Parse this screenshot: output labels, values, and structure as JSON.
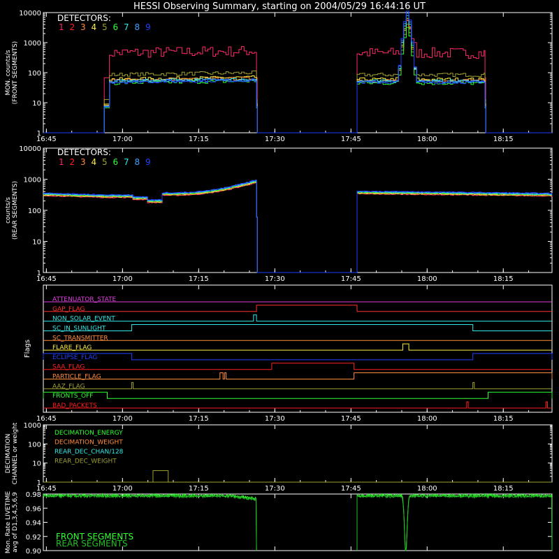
{
  "title": "HESSI Observing Summary, starting on 2004/05/29 16:44:16 UT",
  "colors": {
    "background": "#000000",
    "axis": "#ffffff",
    "det1": "#ff2a68",
    "det2": "#ff2020",
    "det3": "#ff8c3a",
    "det4": "#ffee40",
    "det5": "#a0a030",
    "det6": "#30ff30",
    "det7": "#30e8e8",
    "det8": "#40a0ff",
    "det9": "#2040ff",
    "front": "#30ff30",
    "rear": "#20c020"
  },
  "chart_data": [
    {
      "id": "front",
      "type": "line",
      "ylabel": "MON. counts/s\n(FRONT SEGMENTS)",
      "yscale": "log",
      "ylim": [
        1,
        10000
      ],
      "yticks": [
        "1",
        "10",
        "100",
        "1000",
        "10000"
      ],
      "xlim": [
        16.74,
        18.41
      ],
      "xticks": [
        "16:45",
        "17:00",
        "17:15",
        "17:30",
        "17:45",
        "18:00",
        "18:15"
      ],
      "legend_title": "DETECTORS:",
      "legend_labels": [
        "1",
        "2",
        "3",
        "4",
        "5",
        "6",
        "7",
        "8",
        "9"
      ],
      "segments": [
        [
          16.94,
          17.44
        ],
        [
          17.77,
          18.19
        ]
      ],
      "series": [
        {
          "color_key": "det1",
          "level": 450,
          "noise": 0.18,
          "peak": 3000
        },
        {
          "color_key": "det5",
          "level": 85,
          "noise": 0.06,
          "peak": 2500
        },
        {
          "color_key": "det4",
          "level": 60,
          "noise": 0.05,
          "peak": 4000
        },
        {
          "color_key": "det3",
          "level": 55,
          "noise": 0.05,
          "peak": 3500
        },
        {
          "color_key": "det6",
          "level": 45,
          "noise": 0.06,
          "peak": 2000
        },
        {
          "color_key": "det7",
          "level": 52,
          "noise": 0.05,
          "peak": 5000
        },
        {
          "color_key": "det8",
          "level": 50,
          "noise": 0.05,
          "peak": 6000
        },
        {
          "color_key": "det9",
          "level": 48,
          "noise": 0.05,
          "peak": 7000
        }
      ],
      "flare_time": 17.93
    },
    {
      "id": "rear",
      "type": "line",
      "ylabel": "counts/s\n(REAR SEGMENTS)",
      "yscale": "log",
      "ylim": [
        1,
        10000
      ],
      "yticks": [
        "1",
        "10",
        "100",
        "1000",
        "10000"
      ],
      "xlim": [
        16.74,
        18.41
      ],
      "xticks": [
        "16:45",
        "17:00",
        "17:15",
        "17:30",
        "17:45",
        "18:00",
        "18:15"
      ],
      "legend_title": "DETECTORS:",
      "legend_labels": [
        "1",
        "2",
        "3",
        "4",
        "5",
        "6",
        "7",
        "8",
        "9"
      ],
      "segments": [
        [
          16.74,
          17.44
        ],
        [
          17.77,
          18.41
        ]
      ]
    },
    {
      "id": "flags",
      "type": "line",
      "ylabel": "Flags",
      "xlim": [
        16.74,
        18.41
      ],
      "xticks": [
        "16:45",
        "17:00",
        "17:15",
        "17:30",
        "17:45",
        "18:00",
        "18:15"
      ],
      "flags": [
        {
          "name": "ATTENUATOR_STATE",
          "color": "#e040e0",
          "high": []
        },
        {
          "name": "GAP_FLAG",
          "color": "#ff3030",
          "high": [
            [
              17.44,
              17.77
            ]
          ]
        },
        {
          "name": "NON_SOLAR_EVENT",
          "color": "#30e8e8",
          "high": [
            [
              17.43,
              17.44
            ]
          ]
        },
        {
          "name": "SC_IN_SUNLIGHT",
          "color": "#30e8e8",
          "high": [
            [
              17.03,
              18.15
            ]
          ]
        },
        {
          "name": "SC_TRANSMITTER",
          "color": "#ff8c3a",
          "high": []
        },
        {
          "name": "FLARE_FLAG",
          "color": "#ffee40",
          "high": [
            [
              17.92,
              17.94
            ]
          ]
        },
        {
          "name": "ECLIPSE_FLAG",
          "color": "#2040ff",
          "high": [
            [
              16.74,
              17.03
            ],
            [
              18.15,
              18.41
            ]
          ]
        },
        {
          "name": "SAA_FLAG",
          "color": "#ff2020",
          "high": [
            [
              17.49,
              17.76
            ]
          ]
        },
        {
          "name": "PARTICLE_FLAG",
          "color": "#ff8c3a",
          "high": [
            [
              17.76,
              18.41
            ],
            [
              17.32,
              17.33
            ],
            [
              17.335,
              17.34
            ]
          ]
        },
        {
          "name": "AAZ_FLAG",
          "color": "#a0a030",
          "high": [
            [
              17.03,
              17.035
            ],
            [
              18.15,
              18.155
            ]
          ]
        },
        {
          "name": "FRONTS_OFF",
          "color": "#30ff30",
          "high": [
            [
              16.74,
              16.95
            ],
            [
              18.2,
              18.41
            ]
          ]
        },
        {
          "name": "BAD_PACKETS",
          "color": "#ff2020",
          "high": [
            [
              18.13,
              18.135
            ],
            [
              18.39,
              18.395
            ]
          ]
        }
      ]
    },
    {
      "id": "decimation",
      "type": "line",
      "ylabel": "DECIMATION\nCHANNEL or weight",
      "yscale": "log",
      "ylim": [
        1,
        1000
      ],
      "yticks": [
        "1",
        "10",
        "100",
        "1000"
      ],
      "xlim": [
        16.74,
        18.41
      ],
      "xticks": [
        "16:45",
        "17:00",
        "17:15",
        "17:30",
        "17:45",
        "18:00",
        "18:15"
      ],
      "legend": [
        {
          "label": "DECIMATION_ENERGY",
          "color": "#30ff30"
        },
        {
          "label": "DECIMATION_WEIGHT",
          "color": "#ff8c3a"
        },
        {
          "label": "REAR_DEC_CHAN/128",
          "color": "#30e8e8"
        },
        {
          "label": "REAR_DEC_WEIGHT",
          "color": "#a0a030"
        }
      ],
      "box": {
        "x": [
          17.1,
          17.15
        ],
        "y": 4
      }
    },
    {
      "id": "livetime",
      "type": "line",
      "ylabel": "Mon. Rate LIVETIME\navg of D1,3,4,5,6,9",
      "ylim": [
        0.9,
        0.98
      ],
      "yticks": [
        "0.90",
        "0.92",
        "0.94",
        "0.96",
        "0.98"
      ],
      "xlim": [
        16.74,
        18.41
      ],
      "legend": [
        {
          "label": "FRONT SEGMENTS",
          "color": "#30ff30"
        },
        {
          "label": "REAR SEGMENTS",
          "color": "#20c020"
        }
      ],
      "segments": [
        [
          16.74,
          17.44
        ],
        [
          17.77,
          18.41
        ]
      ],
      "dip_time": 17.93,
      "dip_min": 0.9
    }
  ]
}
